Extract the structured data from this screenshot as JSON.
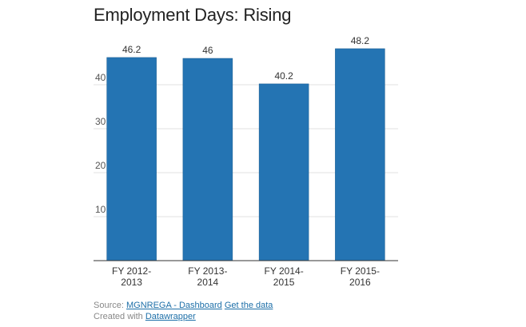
{
  "chart_data": {
    "type": "bar",
    "title": "Employment Days: Rising",
    "categories": [
      [
        "FY 2012-",
        "2013"
      ],
      [
        "FY 2013-",
        "2014"
      ],
      [
        "FY 2014-",
        "2015"
      ],
      [
        "FY 2015-",
        "2016"
      ]
    ],
    "values": [
      46.2,
      46,
      40.2,
      48.2
    ],
    "value_labels": [
      "46.2",
      "46",
      "40.2",
      "48.2"
    ],
    "yticks": [
      10,
      20,
      30,
      40
    ],
    "ylim": [
      0,
      50
    ],
    "grid": true,
    "xlabel": "",
    "ylabel": "",
    "bar_color": "#2474b3"
  },
  "footer": {
    "source_prefix": "Source:",
    "source_link": "MGNREGA - Dashboard",
    "get_data": "Get the data",
    "created_prefix": "Created with",
    "created_link": "Datawrapper"
  }
}
